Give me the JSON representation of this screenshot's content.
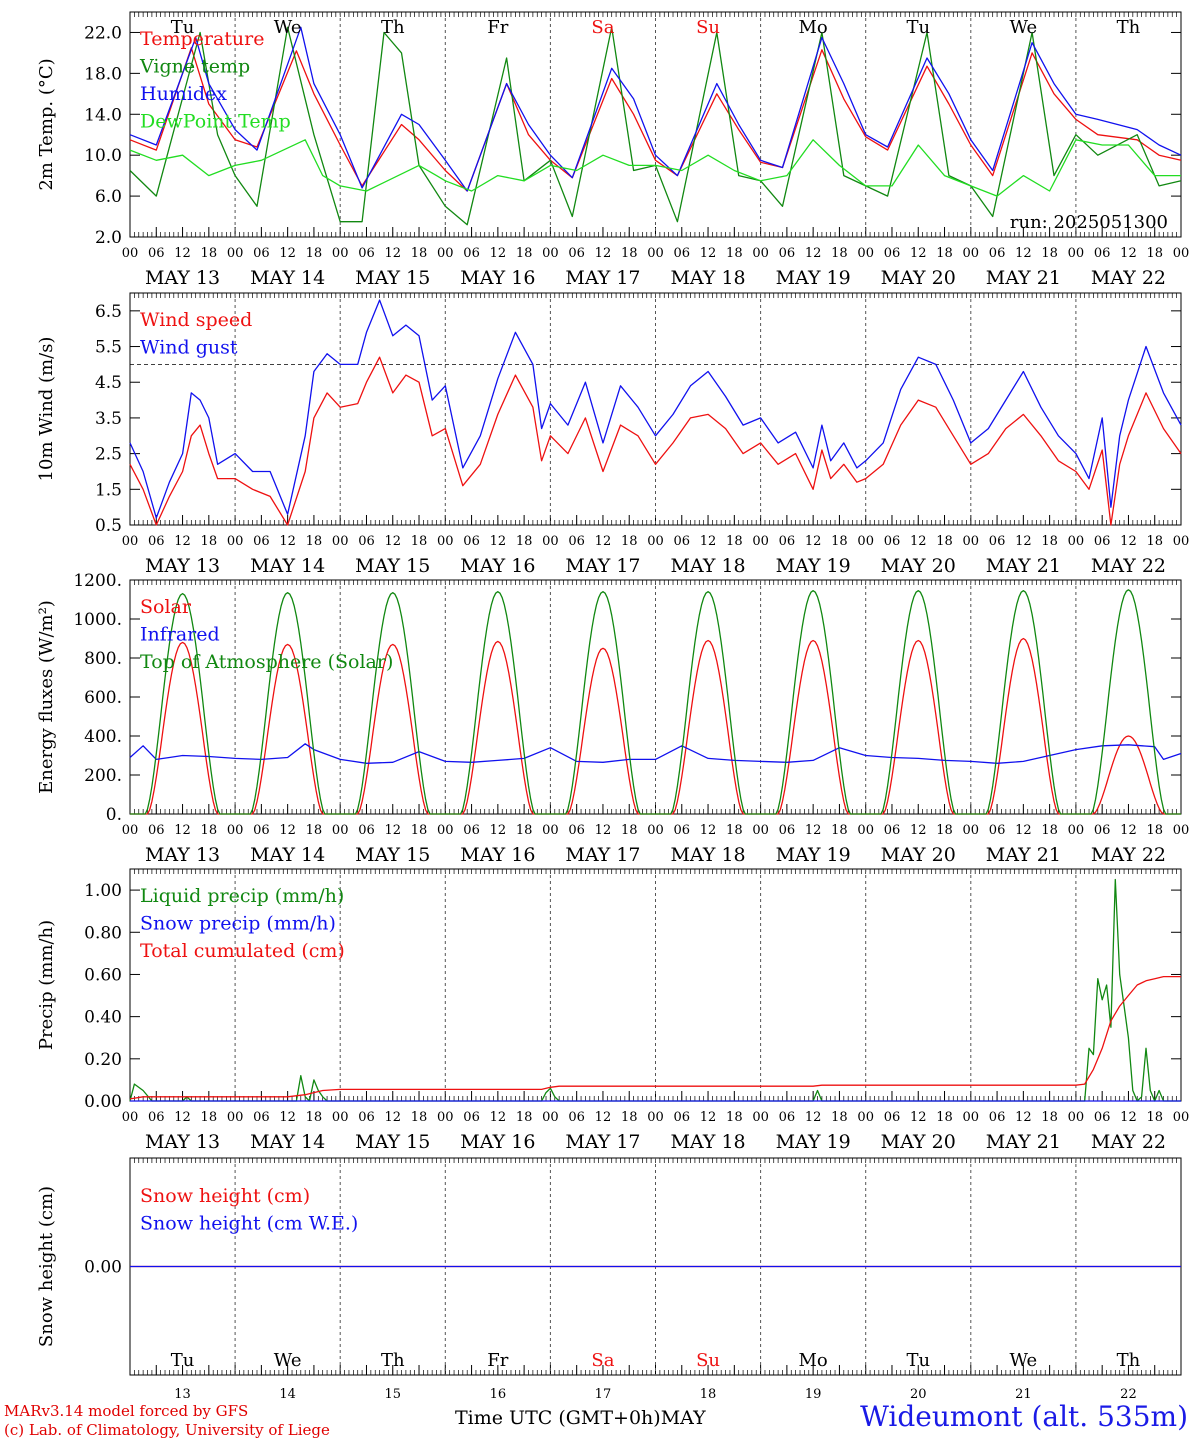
{
  "run_label": "run: 2025051300",
  "footer": {
    "credit_line1": "MARv3.14 model forced by GFS",
    "credit_line2": "(c) Lab. of Climatology, University of Liege",
    "xaxis_label": "Time UTC (GMT+0h)MAY",
    "station": "Wideumont (alt. 535m)"
  },
  "colors": {
    "red": "#ee1111",
    "green": "#118811",
    "blue": "#1111ee",
    "lightgreen": "#22dd22",
    "grid": "#555555"
  },
  "days": {
    "weekday_labels": [
      "Tu",
      "We",
      "Th",
      "Fr",
      "Sa",
      "Su",
      "Mo",
      "Tu",
      "We",
      "Th"
    ],
    "weekend_days": [
      4,
      5
    ],
    "date_labels": [
      "MAY 13",
      "MAY 14",
      "MAY 15",
      "MAY 16",
      "MAY 17",
      "MAY 18",
      "MAY 19",
      "MAY 20",
      "MAY 21",
      "MAY 22"
    ],
    "day_numbers": [
      "13",
      "14",
      "15",
      "16",
      "17",
      "18",
      "19",
      "20",
      "21",
      "22"
    ],
    "hour_ticks": [
      "00",
      "06",
      "12",
      "18"
    ],
    "final_hour": "00"
  },
  "chart_data": [
    {
      "type": "line",
      "ylabel": "2m Temp. (°C)",
      "ylim": [
        2,
        24
      ],
      "yticks": [
        "2.0",
        "6.0",
        "10.0",
        "14.0",
        "18.0",
        "22.0"
      ],
      "x_unit": "hours since 2025-05-13 00 UTC",
      "series": [
        {
          "name": "Temperature",
          "color": "red",
          "x": [
            0,
            6,
            14,
            18,
            24,
            29,
            38,
            42,
            48,
            53,
            62,
            66,
            72,
            77,
            86,
            91,
            96,
            101,
            110,
            115,
            120,
            125,
            134,
            139,
            144,
            149,
            158,
            163,
            168,
            173,
            182,
            187,
            192,
            197,
            206,
            211,
            216,
            221,
            230,
            235,
            240
          ],
          "y": [
            11.5,
            10.5,
            20.5,
            15,
            11.5,
            10.8,
            20.2,
            16,
            11,
            7,
            13,
            11.5,
            8.5,
            6.5,
            17,
            12,
            9.5,
            7.8,
            17.5,
            14,
            9.5,
            8,
            16,
            12.5,
            9.3,
            8.8,
            20.3,
            15.5,
            11.8,
            10.5,
            18.7,
            15,
            11,
            8,
            20,
            16,
            13.5,
            12,
            11.5,
            10,
            9.5
          ]
        },
        {
          "name": "Vigne temp",
          "color": "green",
          "x": [
            0,
            6,
            16,
            20,
            24,
            29,
            36,
            42,
            48,
            53,
            58,
            62,
            66,
            72,
            77,
            86,
            90,
            96,
            101,
            110,
            115,
            120,
            125,
            134,
            139,
            144,
            149,
            158,
            163,
            168,
            173,
            182,
            187,
            192,
            197,
            206,
            211,
            216,
            221,
            230,
            235,
            240
          ],
          "y": [
            8.5,
            6,
            22,
            12,
            8,
            5,
            22.5,
            12,
            3.5,
            3.5,
            22,
            20,
            9,
            5,
            3.2,
            19.5,
            7.5,
            9.5,
            4,
            22.5,
            8.5,
            9,
            3.5,
            22,
            8,
            7.5,
            5,
            22,
            8,
            7,
            6,
            22,
            8,
            7,
            4,
            22,
            8,
            12,
            10,
            12,
            7,
            7.5
          ]
        },
        {
          "name": "Humidex",
          "color": "blue",
          "x": [
            0,
            6,
            15,
            18,
            24,
            29,
            39,
            42,
            48,
            53,
            62,
            66,
            72,
            77,
            86,
            91,
            96,
            101,
            110,
            115,
            120,
            125,
            134,
            139,
            144,
            149,
            158,
            163,
            168,
            173,
            182,
            187,
            192,
            197,
            206,
            211,
            216,
            221,
            230,
            235,
            240
          ],
          "y": [
            12,
            11,
            21.5,
            17,
            12.5,
            10.5,
            22.5,
            17,
            12,
            6.8,
            14,
            13,
            9.5,
            6.5,
            17,
            13,
            10,
            7.8,
            18.5,
            15.5,
            10,
            8,
            17,
            13,
            9.5,
            8.8,
            21.5,
            17,
            12,
            10.8,
            19.5,
            16,
            11.5,
            8.5,
            21,
            17,
            14,
            13.5,
            12.5,
            11,
            10
          ]
        },
        {
          "name": "DewPoint Temp",
          "color": "lightgreen",
          "x": [
            0,
            6,
            12,
            18,
            24,
            30,
            40,
            44,
            48,
            54,
            66,
            70,
            72,
            78,
            84,
            90,
            96,
            102,
            108,
            114,
            120,
            126,
            132,
            138,
            144,
            150,
            156,
            162,
            168,
            174,
            180,
            186,
            192,
            198,
            204,
            210,
            216,
            222,
            228,
            234,
            240
          ],
          "y": [
            10.5,
            9.5,
            10,
            8,
            9,
            9.5,
            11.5,
            8,
            7,
            6.5,
            9,
            8,
            7.5,
            6.5,
            8,
            7.5,
            9,
            8.5,
            10,
            9,
            9,
            8.5,
            10,
            8.5,
            7.5,
            8,
            11.5,
            9,
            7,
            7,
            11,
            8,
            7,
            6,
            8,
            6.5,
            11.5,
            11,
            11,
            8,
            8
          ]
        }
      ]
    },
    {
      "type": "line",
      "ylabel": "10m Wind (m/s)",
      "ylim": [
        0.5,
        7.0
      ],
      "yticks": [
        "0.5",
        "1.5",
        "2.5",
        "3.5",
        "4.5",
        "5.5",
        "6.5"
      ],
      "reference_line": 5.0,
      "series": [
        {
          "name": "Wind speed",
          "color": "red",
          "x": [
            0,
            3,
            6,
            9,
            12,
            14,
            16,
            18,
            20,
            24,
            28,
            32,
            36,
            40,
            42,
            45,
            48,
            52,
            54,
            57,
            60,
            63,
            66,
            69,
            72,
            76,
            80,
            84,
            88,
            92,
            94,
            96,
            100,
            104,
            108,
            112,
            116,
            120,
            124,
            128,
            132,
            136,
            140,
            144,
            148,
            152,
            156,
            158,
            160,
            163,
            166,
            168,
            172,
            176,
            180,
            184,
            188,
            192,
            196,
            200,
            204,
            208,
            212,
            216,
            219,
            222,
            224,
            226,
            228,
            232,
            236,
            240
          ],
          "y": [
            2.2,
            1.5,
            0.5,
            1.3,
            2.0,
            3.0,
            3.3,
            2.5,
            1.8,
            1.8,
            1.5,
            1.3,
            0.5,
            2.0,
            3.5,
            4.2,
            3.8,
            3.9,
            4.5,
            5.2,
            4.2,
            4.7,
            4.5,
            3.0,
            3.2,
            1.6,
            2.2,
            3.6,
            4.7,
            3.8,
            2.3,
            3.0,
            2.5,
            3.5,
            2.0,
            3.3,
            3.0,
            2.2,
            2.8,
            3.5,
            3.6,
            3.2,
            2.5,
            2.8,
            2.2,
            2.5,
            1.5,
            2.6,
            1.8,
            2.2,
            1.7,
            1.8,
            2.2,
            3.3,
            4.0,
            3.8,
            3.0,
            2.2,
            2.5,
            3.2,
            3.6,
            3.0,
            2.3,
            2.0,
            1.5,
            2.6,
            0.5,
            2.2,
            3.0,
            4.2,
            3.2,
            2.5
          ]
        },
        {
          "name": "Wind gust",
          "color": "blue",
          "x": [
            0,
            3,
            6,
            9,
            12,
            14,
            16,
            18,
            20,
            24,
            28,
            32,
            36,
            40,
            42,
            45,
            48,
            52,
            54,
            57,
            60,
            63,
            66,
            69,
            72,
            76,
            80,
            84,
            88,
            92,
            94,
            96,
            100,
            104,
            108,
            112,
            116,
            120,
            124,
            128,
            132,
            136,
            140,
            144,
            148,
            152,
            156,
            158,
            160,
            163,
            166,
            168,
            172,
            176,
            180,
            184,
            188,
            192,
            196,
            200,
            204,
            208,
            212,
            216,
            219,
            222,
            224,
            226,
            228,
            232,
            236,
            240
          ],
          "y": [
            2.8,
            2.0,
            0.7,
            1.7,
            2.5,
            4.2,
            4.0,
            3.5,
            2.2,
            2.5,
            2.0,
            2.0,
            0.8,
            3.0,
            4.8,
            5.3,
            5.0,
            5.0,
            5.9,
            6.8,
            5.8,
            6.1,
            5.8,
            4.0,
            4.4,
            2.1,
            3.0,
            4.6,
            5.9,
            5.0,
            3.2,
            3.9,
            3.3,
            4.5,
            2.8,
            4.4,
            3.8,
            3.0,
            3.6,
            4.4,
            4.8,
            4.1,
            3.3,
            3.5,
            2.8,
            3.1,
            2.1,
            3.3,
            2.3,
            2.8,
            2.1,
            2.3,
            2.8,
            4.3,
            5.2,
            5.0,
            4.0,
            2.8,
            3.2,
            4.0,
            4.8,
            3.8,
            3.0,
            2.5,
            1.8,
            3.5,
            1.0,
            3.0,
            4.0,
            5.5,
            4.2,
            3.3
          ]
        }
      ]
    },
    {
      "type": "line",
      "ylabel": "Energy fluxes (W/m²)",
      "ylim": [
        0,
        1200
      ],
      "yticks": [
        "0.",
        "200.",
        "400.",
        "600.",
        "800.",
        "1000.",
        "1200."
      ],
      "series": [
        {
          "name": "Solar",
          "color": "red",
          "peaks": [
            880,
            870,
            870,
            885,
            850,
            890,
            890,
            890,
            900,
            400
          ],
          "peak_hour": 12,
          "sunrise_hour": 4,
          "sunset_hour": 20
        },
        {
          "name": "Infrared",
          "color": "blue",
          "x": [
            0,
            3,
            6,
            9,
            12,
            18,
            24,
            30,
            36,
            40,
            42,
            48,
            54,
            60,
            66,
            72,
            78,
            84,
            90,
            96,
            102,
            108,
            114,
            120,
            126,
            132,
            138,
            144,
            150,
            156,
            162,
            168,
            174,
            180,
            186,
            192,
            198,
            204,
            210,
            216,
            222,
            228,
            234,
            236,
            240
          ],
          "y": [
            290,
            350,
            280,
            290,
            300,
            295,
            285,
            280,
            290,
            360,
            330,
            280,
            260,
            265,
            320,
            270,
            265,
            275,
            285,
            340,
            270,
            265,
            280,
            280,
            350,
            285,
            275,
            270,
            265,
            275,
            340,
            300,
            290,
            285,
            275,
            270,
            260,
            270,
            300,
            330,
            350,
            355,
            345,
            280,
            310
          ]
        },
        {
          "name": "Top of Atmosphere (Solar)",
          "color": "green",
          "peaks": [
            1130,
            1135,
            1135,
            1140,
            1140,
            1140,
            1145,
            1145,
            1145,
            1150
          ],
          "peak_hour": 12,
          "sunrise_hour": 3.5,
          "sunset_hour": 20.5
        }
      ]
    },
    {
      "type": "line",
      "ylabel": "Precip (mm/h)",
      "ylim": [
        0,
        1.1
      ],
      "yticks": [
        "0.00",
        "0.20",
        "0.40",
        "0.60",
        "0.80",
        "1.00"
      ],
      "series": [
        {
          "name": "Liquid precip (mm/h)",
          "color": "green",
          "x": [
            0,
            1,
            3,
            5,
            6,
            12,
            13,
            14,
            36,
            37,
            38,
            39,
            40,
            41,
            42,
            43,
            44,
            45,
            46,
            94,
            95,
            96,
            97,
            98,
            156,
            157,
            158,
            218,
            219,
            220,
            221,
            222,
            223,
            224,
            225,
            226,
            227,
            228,
            229,
            230,
            231,
            232,
            233,
            234,
            235,
            236,
            240
          ],
          "y": [
            0,
            0.08,
            0.05,
            0,
            0,
            0,
            0.02,
            0,
            0,
            0,
            0,
            0.12,
            0.02,
            0,
            0.1,
            0.05,
            0.02,
            0,
            0,
            0,
            0.04,
            0.06,
            0.02,
            0,
            0,
            0.05,
            0,
            0,
            0.25,
            0.22,
            0.58,
            0.48,
            0.55,
            0.35,
            1.05,
            0.6,
            0.45,
            0.3,
            0.05,
            0,
            0.02,
            0.25,
            0.05,
            0,
            0.05,
            0,
            0
          ]
        },
        {
          "name": "Snow precip (mm/h)",
          "color": "blue",
          "x": [
            0,
            240
          ],
          "y": [
            0,
            0
          ]
        },
        {
          "name": "Total cumulated (cm)",
          "color": "red",
          "x": [
            0,
            3,
            36,
            40,
            42,
            44,
            48,
            94,
            96,
            98,
            156,
            158,
            216,
            218,
            220,
            222,
            224,
            226,
            228,
            230,
            232,
            234,
            236,
            240
          ],
          "y": [
            0.01,
            0.02,
            0.02,
            0.03,
            0.04,
            0.05,
            0.055,
            0.055,
            0.065,
            0.07,
            0.07,
            0.075,
            0.075,
            0.08,
            0.15,
            0.25,
            0.38,
            0.45,
            0.5,
            0.55,
            0.57,
            0.58,
            0.59,
            0.59
          ]
        }
      ]
    },
    {
      "type": "line",
      "ylabel": "Snow height (cm)",
      "ylim": [
        -1,
        1
      ],
      "yticks": [
        "0.00"
      ],
      "series": [
        {
          "name": "Snow height (cm)",
          "color": "red",
          "x": [
            0,
            240
          ],
          "y": [
            0,
            0
          ]
        },
        {
          "name": "Snow height (cm W.E.)",
          "color": "blue",
          "x": [
            0,
            240
          ],
          "y": [
            0,
            0
          ]
        }
      ]
    }
  ]
}
